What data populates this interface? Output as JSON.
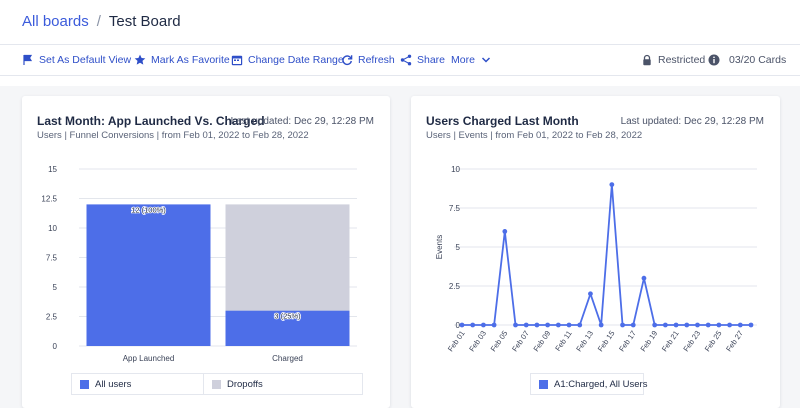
{
  "breadcrumb": {
    "root": "All boards",
    "separator": "/",
    "current": "Test Board"
  },
  "toolbar": {
    "set_default": "Set As Default View",
    "favorite": "Mark As Favorite",
    "date_range": "Change Date Range",
    "refresh": "Refresh",
    "share": "Share",
    "more": "More",
    "restricted": "Restricted",
    "cards": "03/20 Cards"
  },
  "colors": {
    "accent": "#3b5bdb",
    "series": "#4d6ee8",
    "dropoff": "#cfd0dc",
    "text": "#1f2a44"
  },
  "cards": [
    {
      "title": "Last Month: App Launched Vs. Charged",
      "updated": "Last updated: Dec 29, 12:28 PM",
      "subtitle": "Users | Funnel Conversions | from Feb 01, 2022 to Feb 28, 2022",
      "legend": [
        "All users",
        "Dropoffs"
      ]
    },
    {
      "title": "Users Charged Last Month",
      "updated": "Last updated: Dec 29, 12:28 PM",
      "subtitle": "Users | Events | from Feb 01, 2022 to Feb 28, 2022",
      "legend": [
        "A1:Charged, All Users"
      ]
    }
  ],
  "chart_data": [
    {
      "type": "bar",
      "stacked": true,
      "categories": [
        "App Launched",
        "Charged"
      ],
      "series": [
        {
          "name": "All users",
          "values": [
            12,
            3
          ],
          "color": "#4d6ee8"
        },
        {
          "name": "Dropoffs",
          "values": [
            0,
            9
          ],
          "color": "#cfd0dc"
        }
      ],
      "data_labels": [
        "12 (100%)",
        "3 (25%)"
      ],
      "y_ticks": [
        "0",
        "2.5",
        "5",
        "7.5",
        "10",
        "12.5",
        "15"
      ],
      "ylim": [
        0,
        15
      ],
      "grid": true,
      "legend": "bottom"
    },
    {
      "type": "line",
      "x": [
        "Feb 01",
        "Feb 02",
        "Feb 03",
        "Feb 04",
        "Feb 05",
        "Feb 06",
        "Feb 07",
        "Feb 08",
        "Feb 09",
        "Feb 10",
        "Feb 11",
        "Feb 12",
        "Feb 13",
        "Feb 14",
        "Feb 15",
        "Feb 16",
        "Feb 17",
        "Feb 18",
        "Feb 19",
        "Feb 20",
        "Feb 21",
        "Feb 22",
        "Feb 23",
        "Feb 24",
        "Feb 25",
        "Feb 26",
        "Feb 27",
        "Feb 28"
      ],
      "x_tick_labels": [
        "Feb 01",
        "Feb 03",
        "Feb 05",
        "Feb 07",
        "Feb 09",
        "Feb 11",
        "Feb 13",
        "Feb 15",
        "Feb 17",
        "Feb 19",
        "Feb 21",
        "Feb 23",
        "Feb 25",
        "Feb 27"
      ],
      "series": [
        {
          "name": "A1:Charged, All Users",
          "values": [
            0,
            0,
            0,
            0,
            6,
            0,
            0,
            0,
            0,
            0,
            0,
            0,
            2,
            0,
            9,
            0,
            0,
            3,
            0,
            0,
            0,
            0,
            0,
            0,
            0,
            0,
            0,
            0
          ],
          "color": "#4d6ee8"
        }
      ],
      "ylabel": "Events",
      "y_ticks": [
        "0",
        "2.5",
        "5",
        "7.5",
        "10"
      ],
      "ylim": [
        0,
        10
      ],
      "grid": true,
      "legend": "bottom"
    }
  ]
}
